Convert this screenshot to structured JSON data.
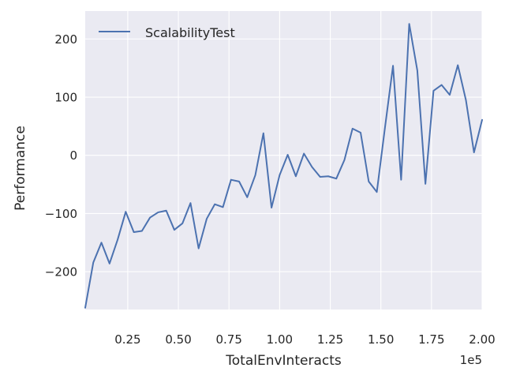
{
  "chart_data": {
    "type": "line",
    "xlabel": "TotalEnvInteracts",
    "ylabel": "Performance",
    "x_offset_label": "1e5",
    "xlim": [
      4000,
      200000
    ],
    "ylim": [
      -265,
      248
    ],
    "x_ticks": [
      25000,
      50000,
      75000,
      100000,
      125000,
      150000,
      175000,
      200000
    ],
    "x_tick_labels": [
      "0.25",
      "0.50",
      "0.75",
      "1.00",
      "1.25",
      "1.50",
      "1.75",
      "2.00"
    ],
    "y_ticks": [
      -200,
      -100,
      0,
      100,
      200
    ],
    "y_tick_labels": [
      "−200",
      "−100",
      "0",
      "100",
      "200"
    ],
    "grid": true,
    "legend_position": "top-left",
    "series": [
      {
        "name": "ScalabilityTest",
        "color": "#4c72b0",
        "x": [
          4000,
          8000,
          12000,
          16000,
          20000,
          24000,
          28000,
          32000,
          36000,
          40000,
          44000,
          48000,
          52000,
          56000,
          60000,
          64000,
          68000,
          72000,
          76000,
          80000,
          84000,
          88000,
          92000,
          96000,
          100000,
          104000,
          108000,
          112000,
          116000,
          120000,
          124000,
          128000,
          132000,
          136000,
          140000,
          144000,
          148000,
          152000,
          156000,
          160000,
          164000,
          168000,
          172000,
          176000,
          180000,
          184000,
          188000,
          192000,
          196000,
          200000
        ],
        "values": [
          -262,
          -184,
          -150,
          -186,
          -145,
          -97,
          -132,
          -130,
          -107,
          -98,
          -95,
          -128,
          -117,
          -82,
          -160,
          -109,
          -84,
          -89,
          -42,
          -45,
          -72,
          -34,
          38,
          -90,
          -34,
          1,
          -36,
          3,
          -20,
          -37,
          -36,
          -40,
          -8,
          46,
          39,
          -45,
          -63,
          47,
          154,
          -42,
          226,
          146,
          -49,
          111,
          121,
          104,
          155,
          95,
          5,
          61
        ]
      }
    ]
  }
}
